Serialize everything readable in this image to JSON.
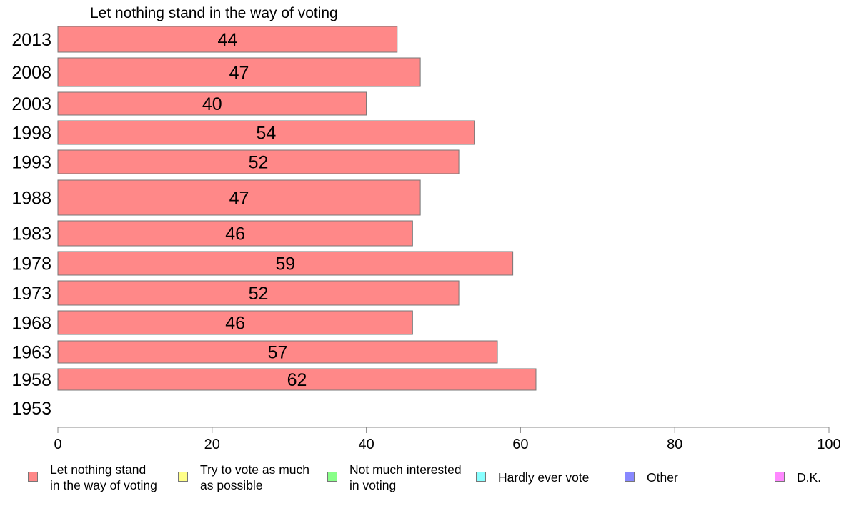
{
  "chart_data": {
    "type": "bar",
    "orientation": "horizontal",
    "title": "Let nothing stand in the way of voting",
    "categories": [
      "2013",
      "2008",
      "2003",
      "1998",
      "1993",
      "1988",
      "1983",
      "1978",
      "1973",
      "1968",
      "1963",
      "1958",
      "1953"
    ],
    "series": [
      {
        "name": "Let nothing stand in the way of voting",
        "values": [
          44,
          47,
          40,
          54,
          52,
          47,
          46,
          59,
          52,
          46,
          57,
          62,
          null
        ],
        "color": "#ff8888"
      }
    ],
    "data_labels": [
      "44",
      "47",
      "40",
      "54",
      "52",
      "47",
      "46",
      "59",
      "52",
      "46",
      "57",
      "62",
      ""
    ],
    "xlim": [
      0,
      100
    ],
    "xticks": [
      "0",
      "20",
      "40",
      "60",
      "80",
      "100"
    ],
    "grid": false,
    "legend_position": "bottom",
    "legend": [
      {
        "label": "Let nothing stand\nin the way of voting",
        "color": "#ff8888"
      },
      {
        "label": "Try to vote as much\nas possible",
        "color": "#ffff88"
      },
      {
        "label": "Not much interested\nin voting",
        "color": "#88ff88"
      },
      {
        "label": "Hardly ever vote",
        "color": "#88ffff"
      },
      {
        "label": "Other",
        "color": "#8888ff"
      },
      {
        "label": "D.K.",
        "color": "#ff88ff"
      }
    ]
  }
}
